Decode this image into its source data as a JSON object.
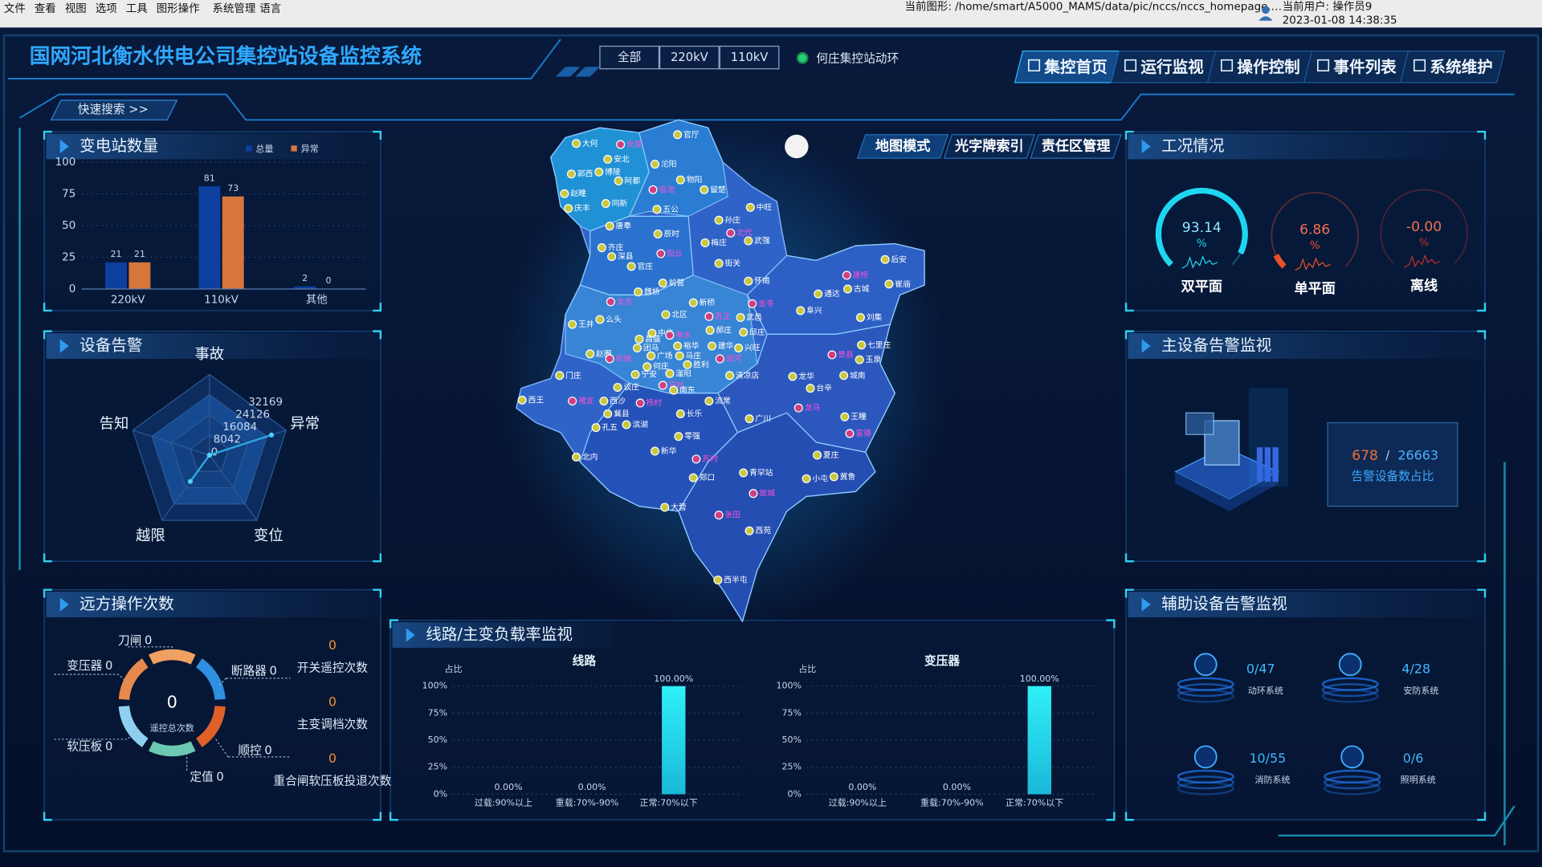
{
  "menu": {
    "items": [
      "文件",
      "查看",
      "视图",
      "选项",
      "工具",
      "图形操作",
      "系统管理",
      "语言"
    ],
    "current_graphic": "当前图形: /home/smart/A5000_MAMS/data/pic/nccs/nccs_homepage.…",
    "current_user": "当前用户: 操作员9",
    "datetime": "2023-01-08 14:38:35"
  },
  "header": {
    "title": "国网河北衡水供电公司集控站设备监控系统",
    "voltage_filters": [
      "全部",
      "220kV",
      "110kV"
    ],
    "station": "何庄集控站动环",
    "nav": [
      "集控首页",
      "运行监视",
      "操作控制",
      "事件列表",
      "系统维护"
    ],
    "quick_search": "快速搜索 >>"
  },
  "map": {
    "modes": [
      "地图模式",
      "光字牌索引",
      "责任区管理"
    ],
    "stations": [
      "大何",
      "安陵",
      "官厅",
      "安北",
      "沱阳",
      "郭西",
      "博陵",
      "阿都",
      "物阳",
      "留楚",
      "赵疃",
      "临池",
      "庆丰",
      "同新",
      "五公",
      "中旺",
      "孙庄",
      "唐奉",
      "辰时",
      "北代",
      "齐庄",
      "梅庄",
      "武强",
      "深县",
      "阳丘",
      "官庄",
      "街关",
      "前营",
      "魏桥",
      "怀甫",
      "建桥",
      "后安",
      "古城",
      "崔庙",
      "通达",
      "太古",
      "新桥",
      "金寺",
      "阜兴",
      "王井",
      "么头",
      "北区",
      "苏正",
      "武邑",
      "刘集",
      "中华",
      "衡水",
      "郝庄",
      "邱庄",
      "昌盛",
      "裕华",
      "建华",
      "兴旺",
      "七里庄",
      "赵圈",
      "团马",
      "前铺",
      "广场",
      "马庄",
      "胡河",
      "景县",
      "玉泉",
      "何庄",
      "胜利",
      "门庄",
      "宁安",
      "滏阳",
      "清凉店",
      "龙华",
      "城南",
      "谈庄",
      "富杜",
      "南东",
      "台辛",
      "西王",
      "褚宜",
      "西沙",
      "杨村",
      "流常",
      "龙马",
      "冀县",
      "长乐",
      "广川",
      "王瞳",
      "孔五",
      "滨湖",
      "富德",
      "零强",
      "新华",
      "夏庄",
      "北内",
      "苏村",
      "郑口",
      "青罕站",
      "小屯",
      "冀鲁",
      "故城",
      "大营",
      "张田",
      "西苑",
      "西半屯"
    ]
  },
  "chart_data": [
    {
      "type": "bar",
      "title": "变电站数量",
      "categories": [
        "220kV",
        "110kV",
        "其他"
      ],
      "series": [
        {
          "name": "总量",
          "color": "#0c3f9e",
          "values": [
            21,
            81,
            2
          ]
        },
        {
          "name": "异常",
          "color": "#d6763c",
          "values": [
            21,
            73,
            0
          ]
        }
      ],
      "ylim": [
        0,
        100
      ],
      "yticks": [
        0,
        25,
        50,
        75,
        100
      ],
      "grid": true
    },
    {
      "type": "radar",
      "title": "设备告警",
      "categories": [
        "事故",
        "异常",
        "变位",
        "越限",
        "告知"
      ],
      "values": [
        0,
        26000,
        0,
        13000,
        0
      ],
      "rlim": [
        0,
        32169
      ],
      "rticks": [
        0,
        8042,
        16084,
        24126,
        32169
      ],
      "color": "#2aa7e0"
    },
    {
      "type": "donut",
      "title": "远方操作次数",
      "total": 0,
      "total_label": "遥控总次数",
      "categories": [
        "刀闸",
        "断路器",
        "顺控",
        "定值",
        "软压板",
        "变压器"
      ],
      "values": [
        0,
        0,
        0,
        0,
        0,
        0
      ],
      "colors": [
        "#f0a060",
        "#2f8fe0",
        "#e0602a",
        "#6cc8b0",
        "#8fd0f0",
        "#e8884a"
      ],
      "counters": [
        {
          "value": 0,
          "label": "开关遥控次数"
        },
        {
          "value": 0,
          "label": "主变调档次数"
        },
        {
          "value": 0,
          "label": "重合闸软压板投退次数"
        }
      ]
    },
    {
      "type": "bar",
      "panel_title": "线路/主变负载率监视",
      "title": "线路",
      "ylabel": "占比",
      "categories": [
        "过载:90%以上",
        "重载:70%-90%",
        "正常:70%以下"
      ],
      "values": [
        0,
        0,
        100
      ],
      "value_labels": [
        "0.00%",
        "0.00%",
        "100.00%"
      ],
      "color": "#2fe6f0",
      "ylim": [
        0,
        100
      ],
      "yticks": [
        {
          "value": 0,
          "label": "0%"
        },
        {
          "value": 25,
          "label": "25%"
        },
        {
          "value": 50,
          "label": "50%"
        },
        {
          "value": 75,
          "label": "75%"
        },
        {
          "value": 100,
          "label": "100%"
        }
      ],
      "grid": true
    },
    {
      "type": "bar",
      "title": "变压器",
      "ylabel": "占比",
      "categories": [
        "过载:90%以上",
        "重载:70%-90%",
        "正常:70%以下"
      ],
      "values": [
        0,
        0,
        100
      ],
      "value_labels": [
        "0.00%",
        "0.00%",
        "100.00%"
      ],
      "color": "#2fe6f0",
      "ylim": [
        0,
        100
      ],
      "yticks": [
        {
          "value": 0,
          "label": "0%"
        },
        {
          "value": 25,
          "label": "25%"
        },
        {
          "value": 50,
          "label": "50%"
        },
        {
          "value": 75,
          "label": "75%"
        },
        {
          "value": 100,
          "label": "100%"
        }
      ],
      "grid": true
    },
    {
      "type": "gauge",
      "title": "工况情况",
      "categories": [
        "双平面",
        "单平面",
        "离线"
      ],
      "values": [
        93.14,
        6.86,
        0
      ],
      "value_labels": [
        "93.14",
        "6.86",
        "-0.00"
      ],
      "unit": "%",
      "colors": [
        "#1fd6f0",
        "#e8502a",
        "#c0302a"
      ],
      "ylim": [
        0,
        100
      ]
    }
  ],
  "main_alarm": {
    "title": "主设备告警监视",
    "alarm_count": 678,
    "separator": "/",
    "total": 26663,
    "label": "告警设备数占比"
  },
  "aux_alarm": {
    "title": "辅助设备告警监视",
    "items": [
      {
        "count": "0/47",
        "label": "动环系统"
      },
      {
        "count": "4/28",
        "label": "安防系统"
      },
      {
        "count": "10/55",
        "label": "消防系统"
      },
      {
        "count": "0/6",
        "label": "照明系统"
      }
    ]
  }
}
